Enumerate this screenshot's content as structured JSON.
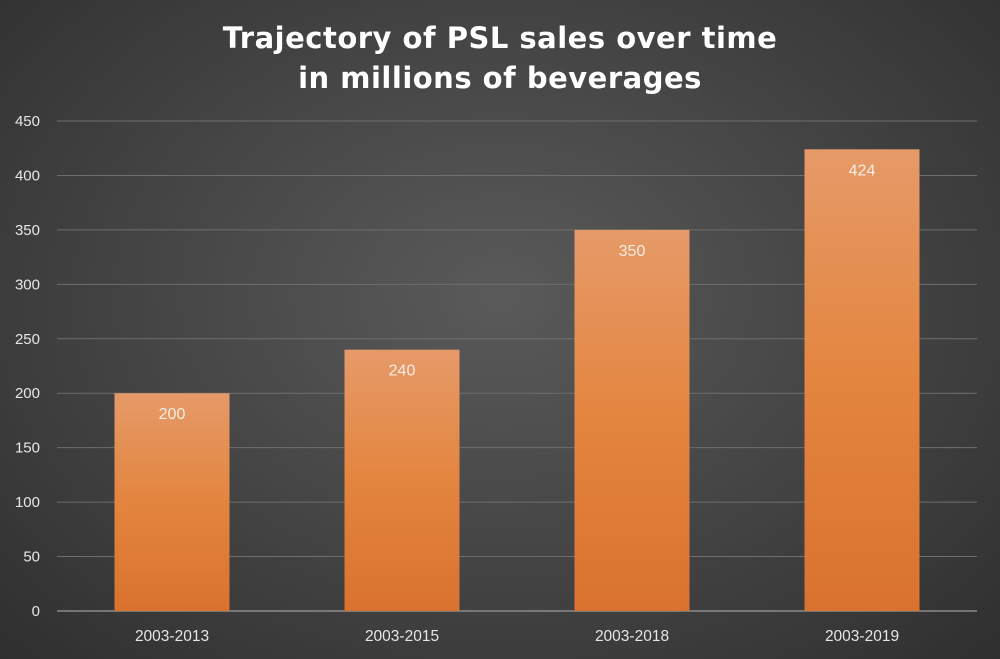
{
  "title_lines": [
    "Trajectory of PSL sales over time",
    "in millions of beverages"
  ],
  "chart_data": {
    "type": "bar",
    "title": "Trajectory of PSL sales over time in millions of beverages",
    "categories": [
      "2003-2013",
      "2003-2015",
      "2003-2018",
      "2003-2019"
    ],
    "values": [
      200,
      240,
      350,
      424
    ],
    "data_labels": [
      "200",
      "240",
      "350",
      "424"
    ],
    "xlabel": "",
    "ylabel": "",
    "ylim": [
      0,
      450
    ],
    "yticks": [
      0,
      50,
      100,
      150,
      200,
      250,
      300,
      350,
      400,
      450
    ],
    "grid": true,
    "legend": "none"
  },
  "colors": {
    "bar_top": "#e69a68",
    "bar_mid": "#e3853f",
    "bar_bottom": "#d9722f",
    "text": "#e6e6e6"
  }
}
